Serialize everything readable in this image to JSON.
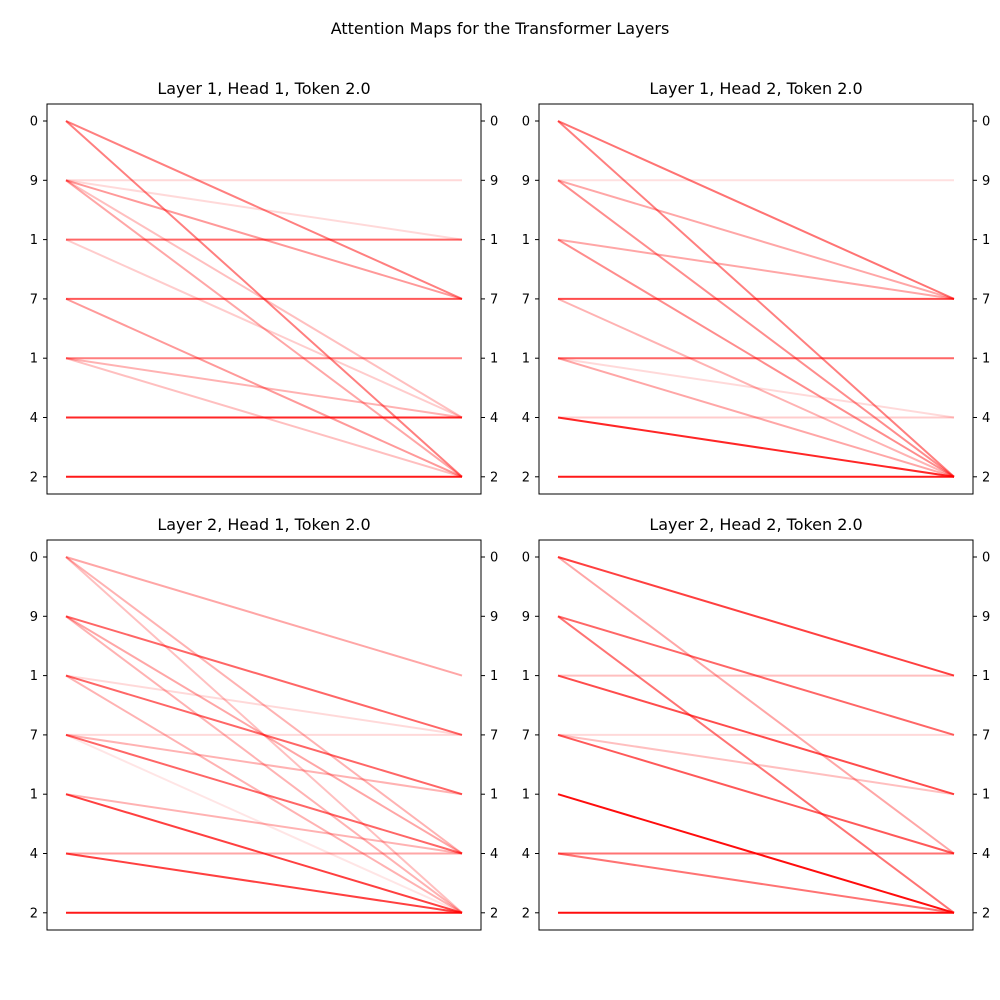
{
  "title": "Attention Maps for the Transformer Layers",
  "line_color": "#ff0000",
  "chart_data": [
    {
      "type": "line",
      "title": "Layer 1, Head 1, Token 2.0",
      "tick_labels": [
        "0",
        "9",
        "1",
        "7",
        "1",
        "4",
        "2"
      ],
      "connections": [
        {
          "from": 0,
          "to": 3,
          "weight": 0.5
        },
        {
          "from": 0,
          "to": 6,
          "weight": 0.5
        },
        {
          "from": 1,
          "to": 1,
          "weight": 0.15
        },
        {
          "from": 1,
          "to": 2,
          "weight": 0.15
        },
        {
          "from": 1,
          "to": 3,
          "weight": 0.4
        },
        {
          "from": 1,
          "to": 5,
          "weight": 0.25
        },
        {
          "from": 1,
          "to": 6,
          "weight": 0.35
        },
        {
          "from": 2,
          "to": 2,
          "weight": 0.6
        },
        {
          "from": 2,
          "to": 5,
          "weight": 0.2
        },
        {
          "from": 3,
          "to": 3,
          "weight": 0.65
        },
        {
          "from": 3,
          "to": 6,
          "weight": 0.4
        },
        {
          "from": 4,
          "to": 4,
          "weight": 0.5
        },
        {
          "from": 4,
          "to": 5,
          "weight": 0.3
        },
        {
          "from": 4,
          "to": 6,
          "weight": 0.25
        },
        {
          "from": 5,
          "to": 5,
          "weight": 0.85
        },
        {
          "from": 6,
          "to": 6,
          "weight": 0.9
        }
      ]
    },
    {
      "type": "line",
      "title": "Layer 1, Head 2, Token 2.0",
      "tick_labels": [
        "0",
        "9",
        "1",
        "7",
        "1",
        "4",
        "2"
      ],
      "connections": [
        {
          "from": 0,
          "to": 3,
          "weight": 0.55
        },
        {
          "from": 0,
          "to": 6,
          "weight": 0.5
        },
        {
          "from": 1,
          "to": 1,
          "weight": 0.12
        },
        {
          "from": 1,
          "to": 3,
          "weight": 0.35
        },
        {
          "from": 1,
          "to": 6,
          "weight": 0.45
        },
        {
          "from": 2,
          "to": 3,
          "weight": 0.35
        },
        {
          "from": 2,
          "to": 6,
          "weight": 0.45
        },
        {
          "from": 3,
          "to": 3,
          "weight": 0.7
        },
        {
          "from": 3,
          "to": 6,
          "weight": 0.3
        },
        {
          "from": 4,
          "to": 4,
          "weight": 0.6
        },
        {
          "from": 4,
          "to": 5,
          "weight": 0.15
        },
        {
          "from": 4,
          "to": 6,
          "weight": 0.35
        },
        {
          "from": 5,
          "to": 5,
          "weight": 0.2
        },
        {
          "from": 5,
          "to": 6,
          "weight": 0.85
        },
        {
          "from": 6,
          "to": 6,
          "weight": 0.9
        }
      ]
    },
    {
      "type": "line",
      "title": "Layer 2, Head 1, Token 2.0",
      "tick_labels": [
        "0",
        "9",
        "1",
        "7",
        "1",
        "4",
        "2"
      ],
      "connections": [
        {
          "from": 0,
          "to": 2,
          "weight": 0.35
        },
        {
          "from": 0,
          "to": 5,
          "weight": 0.3
        },
        {
          "from": 0,
          "to": 6,
          "weight": 0.25
        },
        {
          "from": 1,
          "to": 3,
          "weight": 0.6
        },
        {
          "from": 1,
          "to": 5,
          "weight": 0.35
        },
        {
          "from": 1,
          "to": 6,
          "weight": 0.3
        },
        {
          "from": 2,
          "to": 3,
          "weight": 0.15
        },
        {
          "from": 2,
          "to": 4,
          "weight": 0.6
        },
        {
          "from": 2,
          "to": 6,
          "weight": 0.3
        },
        {
          "from": 3,
          "to": 3,
          "weight": 0.15
        },
        {
          "from": 3,
          "to": 4,
          "weight": 0.3
        },
        {
          "from": 3,
          "to": 5,
          "weight": 0.6
        },
        {
          "from": 3,
          "to": 6,
          "weight": 0.1
        },
        {
          "from": 4,
          "to": 5,
          "weight": 0.3
        },
        {
          "from": 4,
          "to": 6,
          "weight": 0.75
        },
        {
          "from": 5,
          "to": 5,
          "weight": 0.35
        },
        {
          "from": 5,
          "to": 6,
          "weight": 0.75
        },
        {
          "from": 6,
          "to": 6,
          "weight": 0.9
        }
      ]
    },
    {
      "type": "line",
      "title": "Layer 2, Head 2, Token 2.0",
      "tick_labels": [
        "0",
        "9",
        "1",
        "7",
        "1",
        "4",
        "2"
      ],
      "connections": [
        {
          "from": 0,
          "to": 2,
          "weight": 0.75
        },
        {
          "from": 0,
          "to": 5,
          "weight": 0.35
        },
        {
          "from": 1,
          "to": 3,
          "weight": 0.6
        },
        {
          "from": 1,
          "to": 6,
          "weight": 0.55
        },
        {
          "from": 2,
          "to": 2,
          "weight": 0.25
        },
        {
          "from": 2,
          "to": 4,
          "weight": 0.7
        },
        {
          "from": 3,
          "to": 3,
          "weight": 0.15
        },
        {
          "from": 3,
          "to": 4,
          "weight": 0.25
        },
        {
          "from": 3,
          "to": 5,
          "weight": 0.65
        },
        {
          "from": 4,
          "to": 6,
          "weight": 0.95
        },
        {
          "from": 5,
          "to": 5,
          "weight": 0.55
        },
        {
          "from": 5,
          "to": 6,
          "weight": 0.55
        },
        {
          "from": 6,
          "to": 6,
          "weight": 0.95
        }
      ]
    }
  ]
}
